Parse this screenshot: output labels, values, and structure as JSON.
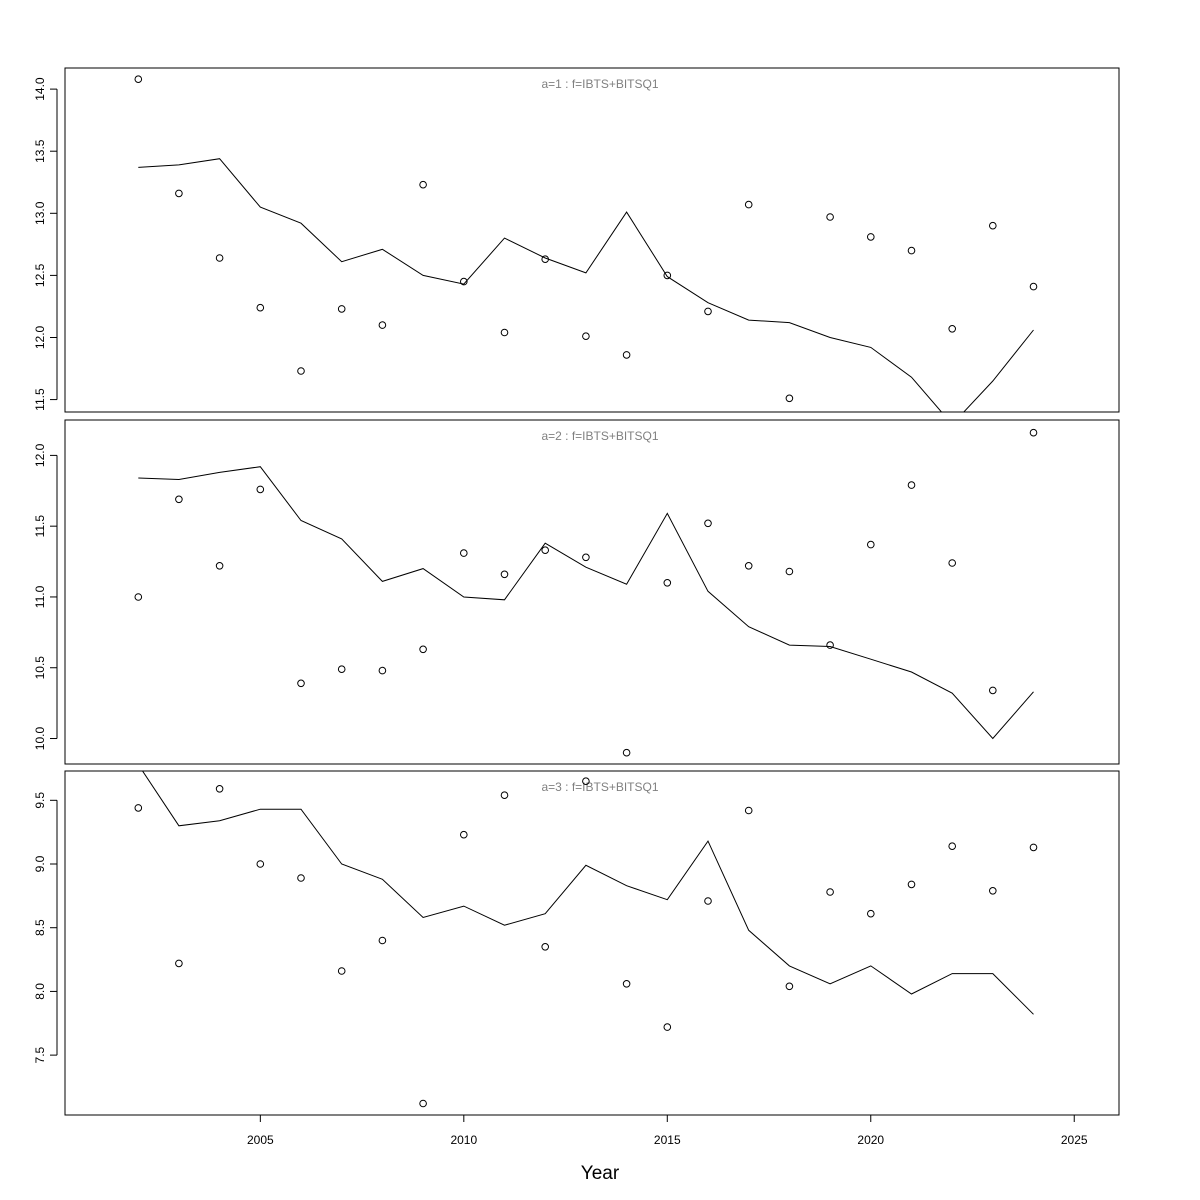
{
  "chart_data": {
    "type": "line",
    "xlabel": "Year",
    "xlim": [
      2000.2,
      2026.1
    ],
    "xticks": [
      2005,
      2010,
      2015,
      2020,
      2025
    ],
    "x": [
      2002,
      2003,
      2004,
      2005,
      2006,
      2007,
      2008,
      2009,
      2010,
      2011,
      2012,
      2013,
      2014,
      2015,
      2016,
      2017,
      2018,
      2019,
      2020,
      2021,
      2022,
      2023,
      2024
    ],
    "panels": [
      {
        "title": "a=1  :  f=IBTS+BITSQ1",
        "ylim": [
          11.4,
          14.17
        ],
        "yticks": [
          "11.5",
          "12.0",
          "12.5",
          "13.0",
          "13.5",
          "14.0"
        ],
        "series": [
          {
            "type": "line",
            "values": [
              13.37,
              13.39,
              13.44,
              13.05,
              12.92,
              12.61,
              12.71,
              12.5,
              12.43,
              12.8,
              12.64,
              12.52,
              13.01,
              12.49,
              12.28,
              12.14,
              12.12,
              12.0,
              11.92,
              11.68,
              11.3,
              11.65,
              12.06
            ]
          },
          {
            "type": "scatter",
            "values": [
              14.08,
              13.16,
              12.64,
              12.24,
              11.73,
              12.23,
              12.1,
              13.23,
              12.45,
              12.04,
              12.63,
              12.01,
              11.86,
              12.5,
              12.21,
              13.07,
              11.51,
              12.97,
              12.81,
              12.7,
              12.07,
              12.9,
              12.41
            ]
          }
        ]
      },
      {
        "title": "a=2  :  f=IBTS+BITSQ1",
        "ylim": [
          9.82,
          12.25
        ],
        "yticks": [
          "10.0",
          "10.5",
          "11.0",
          "11.5",
          "12.0"
        ],
        "series": [
          {
            "type": "line",
            "values": [
              11.84,
              11.83,
              11.88,
              11.92,
              11.54,
              11.41,
              11.11,
              11.2,
              11.0,
              10.98,
              11.38,
              11.21,
              11.09,
              11.59,
              11.04,
              10.79,
              10.66,
              10.65,
              10.56,
              10.47,
              10.32,
              10.0,
              10.33
            ]
          },
          {
            "type": "scatter",
            "values": [
              11.0,
              11.69,
              11.22,
              11.76,
              10.39,
              10.49,
              10.48,
              10.63,
              11.31,
              11.16,
              11.33,
              11.28,
              9.9,
              11.1,
              11.52,
              11.22,
              11.18,
              10.66,
              11.37,
              11.79,
              11.24,
              10.34,
              12.16
            ]
          }
        ]
      },
      {
        "title": "a=3  :  f=IBTS+BITSQ1",
        "ylim": [
          7.03,
          9.73
        ],
        "yticks": [
          "7.5",
          "8.0",
          "8.5",
          "9.0",
          "9.5"
        ],
        "series": [
          {
            "type": "line",
            "values": [
              9.78,
              9.3,
              9.34,
              9.43,
              9.43,
              9.0,
              8.88,
              8.58,
              8.67,
              8.52,
              8.61,
              8.99,
              8.83,
              8.72,
              9.18,
              8.48,
              8.2,
              8.06,
              8.2,
              7.98,
              8.14,
              8.14,
              7.82
            ]
          },
          {
            "type": "scatter",
            "values": [
              9.44,
              8.22,
              9.59,
              9.0,
              8.89,
              8.16,
              8.4,
              7.12,
              9.23,
              9.54,
              8.35,
              9.65,
              8.06,
              7.72,
              8.71,
              9.42,
              8.04,
              8.78,
              8.61,
              8.84,
              9.14,
              8.79,
              9.13
            ]
          }
        ]
      }
    ]
  }
}
